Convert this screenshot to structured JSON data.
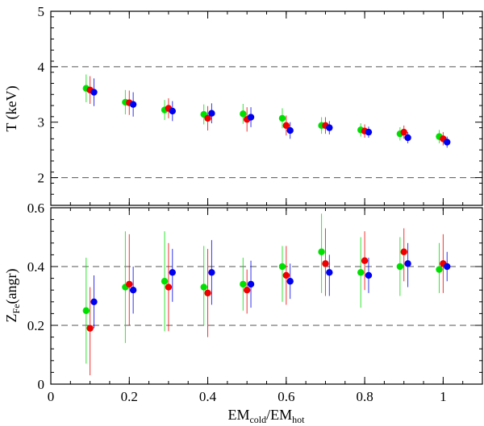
{
  "chart_data": {
    "type": "scatter",
    "x_axis": {
      "label_main": "EM",
      "label_sub1": "cold",
      "label_sep": "/EM",
      "label_sub2": "hot",
      "ticks": [
        "0",
        "0.2",
        "0.4",
        "0.6",
        "0.8",
        "1"
      ],
      "tick_values": [
        0,
        0.2,
        0.4,
        0.6,
        0.8,
        1
      ],
      "range": [
        0,
        1.1
      ]
    },
    "panels": [
      {
        "id": "temperature",
        "ylabel": "T (keV)",
        "ylim": [
          1.5,
          5
        ],
        "yticks": [
          "2",
          "3",
          "4",
          "5"
        ],
        "ytick_values": [
          2,
          3,
          4,
          5
        ],
        "reference_lines": [
          2,
          4
        ],
        "series": [
          {
            "color": "#00e000",
            "x": [
              0.09,
              0.19,
              0.29,
              0.39,
              0.49,
              0.59,
              0.69,
              0.79,
              0.89,
              0.99
            ],
            "y": [
              3.61,
              3.36,
              3.22,
              3.14,
              3.15,
              3.07,
              2.94,
              2.86,
              2.79,
              2.74
            ],
            "err": [
              0.25,
              0.22,
              0.18,
              0.18,
              0.18,
              0.18,
              0.15,
              0.12,
              0.12,
              0.12
            ]
          },
          {
            "color": "#ee0000",
            "x": [
              0.1,
              0.2,
              0.3,
              0.4,
              0.5,
              0.6,
              0.7,
              0.8,
              0.9,
              1.0
            ],
            "y": [
              3.58,
              3.35,
              3.25,
              3.07,
              3.05,
              2.94,
              2.94,
              2.84,
              2.82,
              2.7
            ],
            "err": [
              0.25,
              0.22,
              0.18,
              0.22,
              0.22,
              0.18,
              0.15,
              0.12,
              0.12,
              0.12
            ]
          },
          {
            "color": "#0000ee",
            "x": [
              0.11,
              0.21,
              0.31,
              0.41,
              0.51,
              0.61,
              0.71,
              0.81,
              0.91,
              1.01
            ],
            "y": [
              3.54,
              3.32,
              3.2,
              3.16,
              3.09,
              2.85,
              2.9,
              2.82,
              2.72,
              2.64
            ],
            "err": [
              0.25,
              0.22,
              0.18,
              0.18,
              0.18,
              0.15,
              0.12,
              0.1,
              0.1,
              0.1
            ]
          }
        ]
      },
      {
        "id": "iron-abundance",
        "ylabel_main": "Z",
        "ylabel_sub": "Fe",
        "ylabel_unit": "(angr)",
        "ylim": [
          0,
          0.6
        ],
        "yticks": [
          "0",
          "0.2",
          "0.4",
          "0.6"
        ],
        "ytick_values": [
          0,
          0.2,
          0.4,
          0.6
        ],
        "reference_lines": [
          0.2,
          0.4
        ],
        "series": [
          {
            "color": "#00e000",
            "x": [
              0.09,
              0.19,
              0.29,
              0.39,
              0.49,
              0.59,
              0.69,
              0.79,
              0.89,
              0.99
            ],
            "y": [
              0.25,
              0.33,
              0.35,
              0.33,
              0.34,
              0.4,
              0.45,
              0.38,
              0.4,
              0.39
            ],
            "lo": [
              0.07,
              0.14,
              0.18,
              0.2,
              0.25,
              0.28,
              0.31,
              0.26,
              0.3,
              0.31
            ],
            "hi": [
              0.43,
              0.52,
              0.52,
              0.47,
              0.43,
              0.47,
              0.58,
              0.5,
              0.5,
              0.48
            ]
          },
          {
            "color": "#ee0000",
            "x": [
              0.1,
              0.2,
              0.3,
              0.4,
              0.5,
              0.6,
              0.7,
              0.8,
              0.9,
              1.0
            ],
            "y": [
              0.19,
              0.34,
              0.33,
              0.31,
              0.32,
              0.37,
              0.41,
              0.42,
              0.45,
              0.41
            ],
            "lo": [
              0.03,
              0.2,
              0.18,
              0.16,
              0.24,
              0.27,
              0.3,
              0.32,
              0.35,
              0.31
            ],
            "hi": [
              0.33,
              0.51,
              0.48,
              0.46,
              0.39,
              0.47,
              0.53,
              0.52,
              0.53,
              0.51
            ]
          },
          {
            "color": "#0000ee",
            "x": [
              0.11,
              0.21,
              0.31,
              0.41,
              0.51,
              0.61,
              0.71,
              0.81,
              0.91,
              1.01
            ],
            "y": [
              0.28,
              0.32,
              0.38,
              0.38,
              0.34,
              0.35,
              0.38,
              0.37,
              0.41,
              0.4
            ],
            "lo": [
              0.19,
              0.24,
              0.28,
              0.27,
              0.26,
              0.29,
              0.3,
              0.31,
              0.33,
              0.35
            ],
            "hi": [
              0.37,
              0.4,
              0.46,
              0.49,
              0.42,
              0.41,
              0.44,
              0.43,
              0.48,
              0.45
            ]
          }
        ]
      }
    ]
  }
}
